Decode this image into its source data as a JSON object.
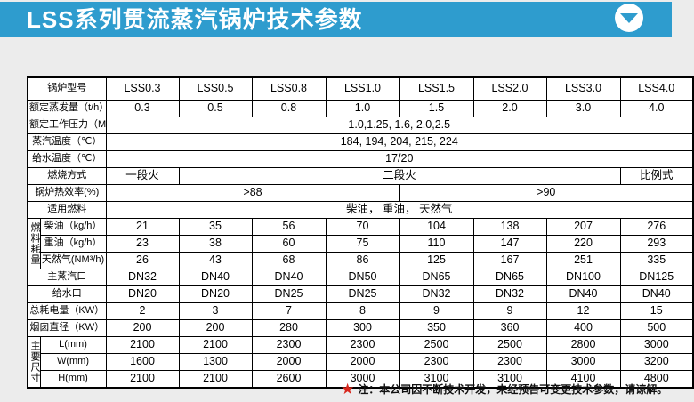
{
  "colors": {
    "accent": "#2E9CCE",
    "star_red": "#D8261C",
    "page_bg": "#ECECEC",
    "table_border": "#000000"
  },
  "header": {
    "title": "LSS系列贯流蒸汽锅炉技术参数",
    "collapse_icon": "chevron-down"
  },
  "table": {
    "rows": [
      {
        "cells": [
          {
            "t": "锅炉型号",
            "cs": 2,
            "label": true
          },
          {
            "t": "LSS0.3"
          },
          {
            "t": "LSS0.5"
          },
          {
            "t": "LSS0.8"
          },
          {
            "t": "LSS1.0"
          },
          {
            "t": "LSS1.5"
          },
          {
            "t": "LSS2.0"
          },
          {
            "t": "LSS3.0"
          },
          {
            "t": "LSS4.0"
          }
        ]
      },
      {
        "cells": [
          {
            "t": "额定蒸发量（t/h）",
            "cs": 2,
            "label": true
          },
          {
            "t": "0.3"
          },
          {
            "t": "0.5"
          },
          {
            "t": "0.8"
          },
          {
            "t": "1.0"
          },
          {
            "t": "1.5"
          },
          {
            "t": "2.0"
          },
          {
            "t": "3.0"
          },
          {
            "t": "4.0"
          }
        ]
      },
      {
        "cells": [
          {
            "t": "额定工作压力（Map）",
            "cs": 2,
            "label": true
          },
          {
            "t": "1.0,1.25, 1.6, 2.0,2.5",
            "cs": 8
          }
        ]
      },
      {
        "cells": [
          {
            "t": "蒸汽温度（℃）",
            "cs": 2,
            "label": true
          },
          {
            "t": "184, 194, 204, 215, 224",
            "cs": 8
          }
        ]
      },
      {
        "cells": [
          {
            "t": "给水温度（℃）",
            "cs": 2,
            "label": true
          },
          {
            "t": "17/20",
            "cs": 8
          }
        ]
      },
      {
        "cells": [
          {
            "t": "燃烧方式",
            "cs": 2,
            "label": true
          },
          {
            "t": "一段火"
          },
          {
            "t": "二段火",
            "cs": 6
          },
          {
            "t": "比例式"
          }
        ]
      },
      {
        "cells": [
          {
            "t": "锅炉热效率(%)",
            "cs": 2,
            "label": true
          },
          {
            "t": ">88",
            "cs": 4
          },
          {
            "t": ">90",
            "cs": 4
          }
        ]
      },
      {
        "cells": [
          {
            "t": "适用燃料",
            "cs": 2,
            "label": true
          },
          {
            "t": "柴油， 重油， 天然气",
            "cs": 8
          }
        ]
      },
      {
        "cells": [
          {
            "t": "燃料耗量",
            "rs": 3,
            "v": true
          },
          {
            "t": "柴油（kg/h）",
            "label": true
          },
          {
            "t": "21"
          },
          {
            "t": "35"
          },
          {
            "t": "56"
          },
          {
            "t": "70"
          },
          {
            "t": "104"
          },
          {
            "t": "138"
          },
          {
            "t": "207"
          },
          {
            "t": "276"
          }
        ]
      },
      {
        "cells": [
          {
            "t": "重油（kg/h）",
            "label": true
          },
          {
            "t": "23"
          },
          {
            "t": "38"
          },
          {
            "t": "60"
          },
          {
            "t": "75"
          },
          {
            "t": "110"
          },
          {
            "t": "147"
          },
          {
            "t": "220"
          },
          {
            "t": "293"
          }
        ]
      },
      {
        "cells": [
          {
            "t": "天然气(NM³/h)",
            "label": true
          },
          {
            "t": "26"
          },
          {
            "t": "43"
          },
          {
            "t": "68"
          },
          {
            "t": "86"
          },
          {
            "t": "125"
          },
          {
            "t": "167"
          },
          {
            "t": "251"
          },
          {
            "t": "335"
          }
        ]
      },
      {
        "cells": [
          {
            "t": "主蒸汽口",
            "cs": 2,
            "label": true
          },
          {
            "t": "DN32"
          },
          {
            "t": "DN40"
          },
          {
            "t": "DN40"
          },
          {
            "t": "DN50"
          },
          {
            "t": "DN65"
          },
          {
            "t": "DN65"
          },
          {
            "t": "DN100"
          },
          {
            "t": "DN125"
          }
        ]
      },
      {
        "cells": [
          {
            "t": "给水口",
            "cs": 2,
            "label": true
          },
          {
            "t": "DN20"
          },
          {
            "t": "DN20"
          },
          {
            "t": "DN25"
          },
          {
            "t": "DN25"
          },
          {
            "t": "DN32"
          },
          {
            "t": "DN32"
          },
          {
            "t": "DN40"
          },
          {
            "t": "DN40"
          }
        ]
      },
      {
        "cells": [
          {
            "t": "总耗电量（KW）",
            "cs": 2,
            "label": true
          },
          {
            "t": "2"
          },
          {
            "t": "3"
          },
          {
            "t": "7"
          },
          {
            "t": "8"
          },
          {
            "t": "9"
          },
          {
            "t": "9"
          },
          {
            "t": "12"
          },
          {
            "t": "15"
          }
        ]
      },
      {
        "cells": [
          {
            "t": "烟囱直径（KW）",
            "cs": 2,
            "label": true
          },
          {
            "t": "200"
          },
          {
            "t": "200"
          },
          {
            "t": "280"
          },
          {
            "t": "300"
          },
          {
            "t": "350"
          },
          {
            "t": "360"
          },
          {
            "t": "400"
          },
          {
            "t": "500"
          }
        ]
      },
      {
        "cells": [
          {
            "t": "主要尺寸",
            "rs": 3,
            "v": true
          },
          {
            "t": "L(mm)",
            "label": true
          },
          {
            "t": "2100"
          },
          {
            "t": "2100"
          },
          {
            "t": "2300"
          },
          {
            "t": "2300"
          },
          {
            "t": "2500"
          },
          {
            "t": "2500"
          },
          {
            "t": "2800"
          },
          {
            "t": "3000"
          }
        ]
      },
      {
        "cells": [
          {
            "t": "W(mm)",
            "label": true
          },
          {
            "t": "1600"
          },
          {
            "t": "1300"
          },
          {
            "t": "2000"
          },
          {
            "t": "2000"
          },
          {
            "t": "2300"
          },
          {
            "t": "2300"
          },
          {
            "t": "3000"
          },
          {
            "t": "3200"
          }
        ]
      },
      {
        "cells": [
          {
            "t": "H(mm)",
            "label": true
          },
          {
            "t": "2100"
          },
          {
            "t": "2100"
          },
          {
            "t": "2600"
          },
          {
            "t": "3000"
          },
          {
            "t": "3100"
          },
          {
            "t": "3100"
          },
          {
            "t": "4100"
          },
          {
            "t": "4800"
          }
        ]
      }
    ]
  },
  "footer": {
    "star": "★",
    "note": "注：本公司因不断技术开发，未经预告可变更技术参数，请谅解。"
  }
}
